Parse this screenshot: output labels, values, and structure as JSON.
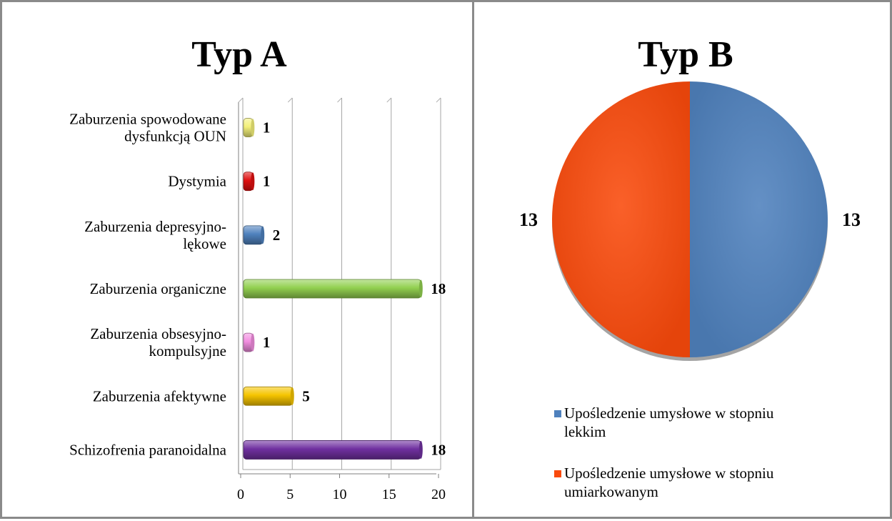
{
  "chart_data": [
    {
      "type": "bar",
      "orientation": "horizontal",
      "title": "Typ A",
      "categories": [
        [
          "Zaburzenia spowodowane",
          "dysfunkcją OUN"
        ],
        [
          "Dystymia"
        ],
        [
          "Zaburzenia depresyjno-",
          "lękowe"
        ],
        [
          "Zaburzenia organiczne"
        ],
        [
          "Zaburzenia obsesyjno-",
          "kompulsyjne"
        ],
        [
          "Zaburzenia afektywne"
        ],
        [
          "Schizofrenia paranoidalna"
        ]
      ],
      "values": [
        1,
        1,
        2,
        18,
        1,
        5,
        18
      ],
      "colors": [
        "#f3f07a",
        "#e01010",
        "#4f81bd",
        "#92d050",
        "#f28ee0",
        "#f5c400",
        "#7030a0"
      ],
      "xlim": [
        0,
        20
      ],
      "xticks": [
        0,
        5,
        10,
        15,
        20
      ],
      "grid": true,
      "data_labels": true
    },
    {
      "type": "pie",
      "title": "Typ B",
      "labels": [
        "Upośledzenie umysłowe w stopniu lekkim",
        "Upośledzenie umysłowe w stopniu umiarkowanym"
      ],
      "legend_lines": [
        [
          "Upośledzenie umysłowe w stopniu",
          "lekkim"
        ],
        [
          "Upośledzenie umysłowe w stopniu",
          "umiarkowanym"
        ]
      ],
      "values": [
        13,
        13
      ],
      "colors": [
        "#4f81bd",
        "#f94a0c"
      ],
      "legend": "bottom",
      "data_labels": true
    }
  ]
}
